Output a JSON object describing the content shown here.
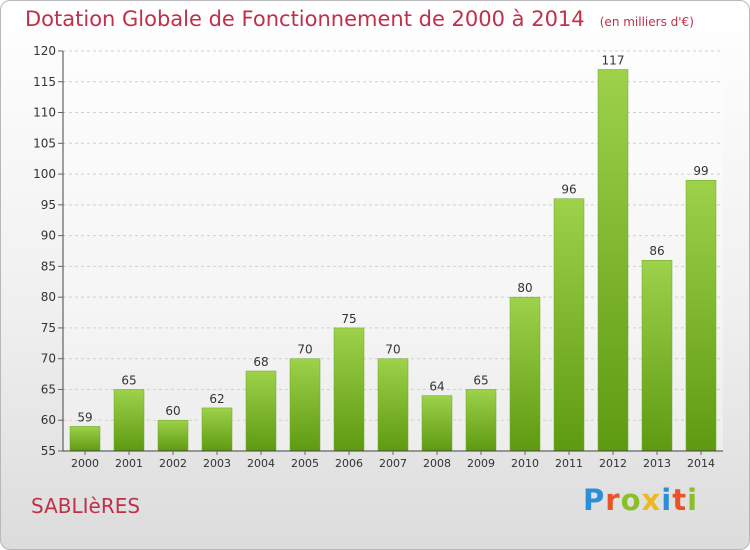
{
  "title": "Dotation Globale de Fonctionnement de 2000 à 2014",
  "unit": "(en milliers d'€)",
  "commune": "SABLIèRES",
  "brand": {
    "letters": [
      {
        "ch": "P",
        "color": "#2a8fd6"
      },
      {
        "ch": "r",
        "color": "#e8542a"
      },
      {
        "ch": "o",
        "color": "#8bbf2a"
      },
      {
        "ch": "x",
        "color": "#f0b820"
      },
      {
        "ch": "i",
        "color": "#2a8fd6"
      },
      {
        "ch": "t",
        "color": "#e8542a"
      },
      {
        "ch": "i",
        "color": "#8bbf2a"
      }
    ]
  },
  "colors": {
    "bar_top": "#9dd24a",
    "bar_bottom": "#5e9a10",
    "title": "#c0304a"
  },
  "chart_data": {
    "type": "bar",
    "title": "Dotation Globale de Fonctionnement de 2000 à 2014",
    "subtitle": "(en milliers d'€)",
    "categories": [
      "2000",
      "2001",
      "2002",
      "2003",
      "2004",
      "2005",
      "2006",
      "2007",
      "2008",
      "2009",
      "2010",
      "2011",
      "2012",
      "2013",
      "2014"
    ],
    "values": [
      59,
      65,
      60,
      62,
      68,
      70,
      75,
      70,
      64,
      65,
      80,
      96,
      117,
      86,
      99
    ],
    "ylim": [
      55,
      120
    ],
    "yticks": [
      55,
      60,
      65,
      70,
      75,
      80,
      85,
      90,
      95,
      100,
      105,
      110,
      115,
      120
    ],
    "grid": true,
    "legend": "none"
  }
}
